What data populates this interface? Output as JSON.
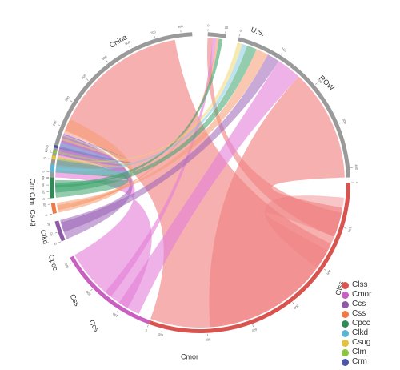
{
  "diagram": {
    "type": "chord",
    "sectors": [
      {
        "key": "China",
        "label": "China",
        "color": "#9a9a9a",
        "ticks": [
          "0",
          "100",
          "200",
          "300",
          "400",
          "500",
          "600",
          "700",
          "800"
        ]
      },
      {
        "key": "US",
        "label": "U.S.",
        "color": "#9a9a9a",
        "ticks": [
          "0",
          "10"
        ]
      },
      {
        "key": "ROW",
        "label": "ROW",
        "color": "#9a9a9a",
        "ticks": [
          "0",
          "100",
          "200",
          "300",
          "400"
        ]
      },
      {
        "key": "Clss",
        "label": "Clss",
        "color": "#d9534f",
        "ticks": [
          "0",
          "100",
          "200",
          "300",
          "400",
          "500",
          "600"
        ]
      },
      {
        "key": "Cmor",
        "label": "Cmor",
        "color": "#c95fc0",
        "ticks": [
          "0",
          "100",
          "200",
          "300"
        ]
      },
      {
        "key": "Ccs",
        "label": "Ccs",
        "color": "#8e5aa5",
        "ticks": [
          "0",
          "20",
          "40"
        ]
      },
      {
        "key": "Css",
        "label": "Css",
        "color": "#ef7a45",
        "ticks": [
          "0",
          "20"
        ]
      },
      {
        "key": "Cpcc",
        "label": "Cpcc",
        "color": "#2e8b57",
        "ticks": [
          "0",
          "20",
          "40",
          "60"
        ]
      },
      {
        "key": "Clkd",
        "label": "Clkd",
        "color": "#5bb5d5",
        "ticks": [
          "0"
        ]
      },
      {
        "key": "Csug",
        "label": "Csug",
        "color": "#e2c13b",
        "ticks": [
          "0"
        ]
      },
      {
        "key": "Clm",
        "label": "Clm",
        "color": "#8cc63f",
        "ticks": [
          "0"
        ]
      },
      {
        "key": "Crm",
        "label": "Crm",
        "color": "#4a56a8",
        "ticks": [
          "0"
        ]
      }
    ],
    "flows": [
      {
        "from": "China",
        "to": "Clss",
        "color": "#f08080"
      },
      {
        "from": "China",
        "to": "Cmor",
        "color": "#e47fd8"
      },
      {
        "from": "China",
        "to": "Ccs",
        "color": "#9b62b8"
      },
      {
        "from": "China",
        "to": "Css",
        "color": "#f59a70"
      },
      {
        "from": "China",
        "to": "Cpcc",
        "color": "#3aa46b"
      },
      {
        "from": "China",
        "to": "Clkd",
        "color": "#7cc7e2"
      },
      {
        "from": "China",
        "to": "Csug",
        "color": "#f0d36a"
      },
      {
        "from": "China",
        "to": "Clm",
        "color": "#a7d76c"
      },
      {
        "from": "China",
        "to": "Crm",
        "color": "#6d76c0"
      },
      {
        "from": "US",
        "to": "Clss",
        "color": "#f08080"
      },
      {
        "from": "US",
        "to": "Cmor",
        "color": "#e47fd8"
      },
      {
        "from": "US",
        "to": "Css",
        "color": "#f59a70"
      },
      {
        "from": "US",
        "to": "Cpcc",
        "color": "#3aa46b"
      },
      {
        "from": "ROW",
        "to": "Clss",
        "color": "#f08080"
      },
      {
        "from": "ROW",
        "to": "Cmor",
        "color": "#e47fd8"
      },
      {
        "from": "ROW",
        "to": "Ccs",
        "color": "#9b62b8"
      },
      {
        "from": "ROW",
        "to": "Css",
        "color": "#f59a70"
      },
      {
        "from": "ROW",
        "to": "Cpcc",
        "color": "#3aa46b"
      },
      {
        "from": "ROW",
        "to": "Clkd",
        "color": "#7cc7e2"
      },
      {
        "from": "ROW",
        "to": "Csug",
        "color": "#f0d36a"
      },
      {
        "from": "Clss",
        "to": "Clss",
        "color": "#f08080"
      }
    ]
  },
  "legend": {
    "items": [
      {
        "label": "Clss",
        "color": "#d9534f"
      },
      {
        "label": "Cmor",
        "color": "#c95fc0"
      },
      {
        "label": "Ccs",
        "color": "#8e5aa5"
      },
      {
        "label": "Css",
        "color": "#ef7a45"
      },
      {
        "label": "Cpcc",
        "color": "#2e8b57"
      },
      {
        "label": "Clkd",
        "color": "#5bb5d5"
      },
      {
        "label": "Csug",
        "color": "#e2c13b"
      },
      {
        "label": "Clm",
        "color": "#8cc63f"
      },
      {
        "label": "Crm",
        "color": "#4a56a8"
      }
    ]
  }
}
